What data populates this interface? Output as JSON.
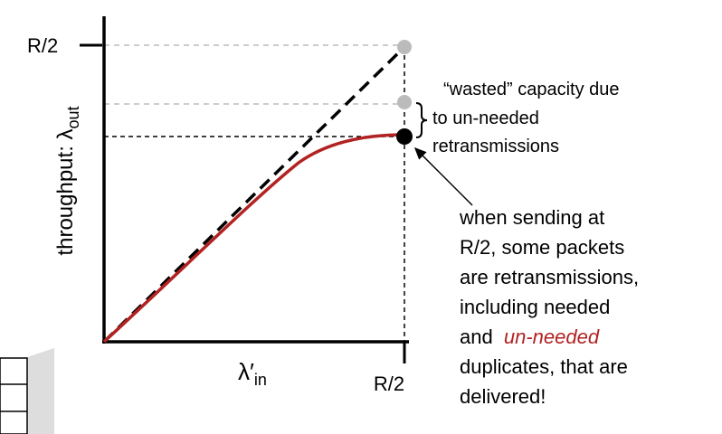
{
  "axes": {
    "y_tick": "R/2",
    "y_label": "throughput: λ",
    "y_label_sub": "out",
    "x_label": "λ′",
    "x_label_sub": "in",
    "x_tick": "R/2"
  },
  "wasted_note": [
    "“wasted” capacity due",
    "to un-needed",
    "retransmissions"
  ],
  "sending_note": {
    "lines": [
      "when sending at",
      "R/2, some packets",
      "are retransmissions,",
      "including needed"
    ],
    "and": "and",
    "un_needed": "un-needed",
    "rest": [
      "duplicates, that are",
      "delivered!"
    ]
  }
}
